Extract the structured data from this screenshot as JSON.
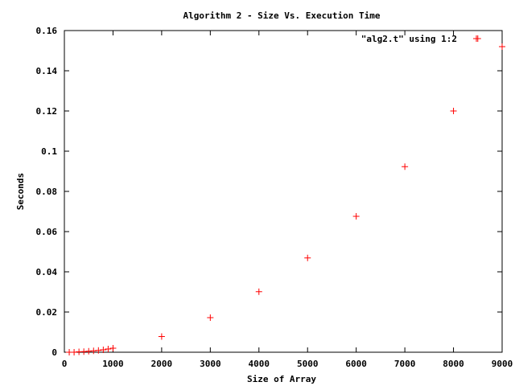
{
  "chart_data": {
    "type": "scatter",
    "title": "Algorithm 2 - Size Vs. Execution Time",
    "xlabel": "Size of Array",
    "ylabel": "Seconds",
    "xlim": [
      0,
      9000
    ],
    "ylim": [
      0,
      0.16
    ],
    "xticks": [
      0,
      1000,
      2000,
      3000,
      4000,
      5000,
      6000,
      7000,
      8000,
      9000
    ],
    "xtick_labels": [
      "0",
      "1000",
      "2000",
      "3000",
      "4000",
      "5000",
      "6000",
      "7000",
      "8000",
      "9000"
    ],
    "yticks": [
      0,
      0.02,
      0.04,
      0.06,
      0.08,
      0.1,
      0.12,
      0.14,
      0.16
    ],
    "ytick_labels": [
      "0",
      "0.02",
      "0.04",
      "0.06",
      "0.08",
      "0.1",
      "0.12",
      "0.14",
      "0.16"
    ],
    "grid": false,
    "legend_position": "top-right",
    "series": [
      {
        "name": "\"alg2.t\" using 1:2",
        "color": "#ff0000",
        "marker": "plus",
        "x": [
          100,
          200,
          300,
          400,
          500,
          600,
          700,
          800,
          900,
          1000,
          2000,
          3000,
          4000,
          5000,
          6000,
          7000,
          8000,
          8500,
          9000
        ],
        "y": [
          0.0,
          0.0,
          0.0002,
          0.0003,
          0.0005,
          0.0007,
          0.0009,
          0.0012,
          0.0016,
          0.002,
          0.0078,
          0.0172,
          0.0301,
          0.0469,
          0.0676,
          0.0923,
          0.12,
          0.156,
          0.152
        ]
      }
    ]
  }
}
